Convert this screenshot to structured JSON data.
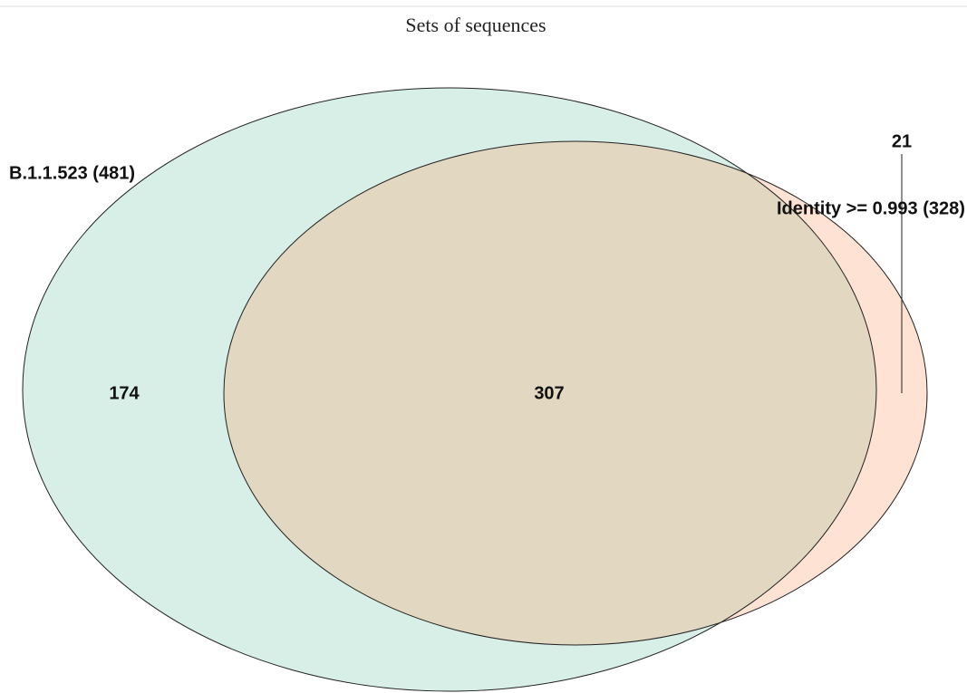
{
  "chart_data": {
    "type": "venn",
    "title": "Sets of sequences",
    "sets": [
      {
        "name": "B.1.1.523 (481)",
        "color": "#7cc9ad"
      },
      {
        "name": "Identity >= 0.993 (328)",
        "color": "#fb9f6c"
      }
    ],
    "values": [
      174,
      307,
      21
    ]
  }
}
